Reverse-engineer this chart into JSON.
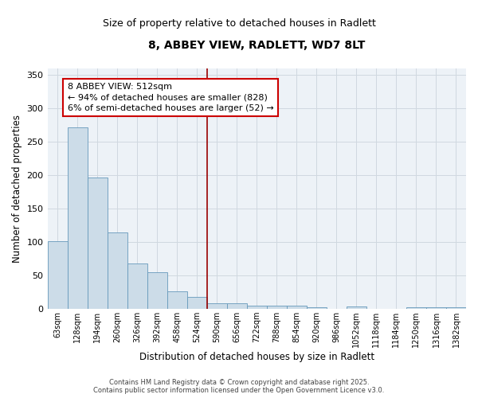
{
  "title": "8, ABBEY VIEW, RADLETT, WD7 8LT",
  "subtitle": "Size of property relative to detached houses in Radlett",
  "xlabel": "Distribution of detached houses by size in Radlett",
  "ylabel": "Number of detached properties",
  "bar_color": "#ccdce8",
  "bar_edge_color": "#6699bb",
  "categories": [
    "63sqm",
    "128sqm",
    "194sqm",
    "260sqm",
    "326sqm",
    "392sqm",
    "458sqm",
    "524sqm",
    "590sqm",
    "656sqm",
    "722sqm",
    "788sqm",
    "854sqm",
    "920sqm",
    "986sqm",
    "1052sqm",
    "1118sqm",
    "1184sqm",
    "1250sqm",
    "1316sqm",
    "1382sqm"
  ],
  "values": [
    102,
    272,
    197,
    115,
    68,
    55,
    27,
    18,
    9,
    8,
    5,
    5,
    5,
    3,
    0,
    4,
    0,
    0,
    3,
    3,
    2
  ],
  "ylim": [
    0,
    360
  ],
  "yticks": [
    0,
    50,
    100,
    150,
    200,
    250,
    300,
    350
  ],
  "annotation_text": "8 ABBEY VIEW: 512sqm\n← 94% of detached houses are smaller (828)\n6% of semi-detached houses are larger (52) →",
  "vline_pos": 7.5,
  "vline_color": "#990000",
  "box_edge_color": "#cc0000",
  "bg_color": "#edf2f7",
  "grid_color": "#d0d8e0",
  "footer": "Contains HM Land Registry data © Crown copyright and database right 2025.\nContains public sector information licensed under the Open Government Licence v3.0.",
  "title_fontsize": 10,
  "subtitle_fontsize": 9,
  "annot_fontsize": 8,
  "tick_fontsize": 7,
  "label_fontsize": 8.5,
  "footer_fontsize": 6
}
